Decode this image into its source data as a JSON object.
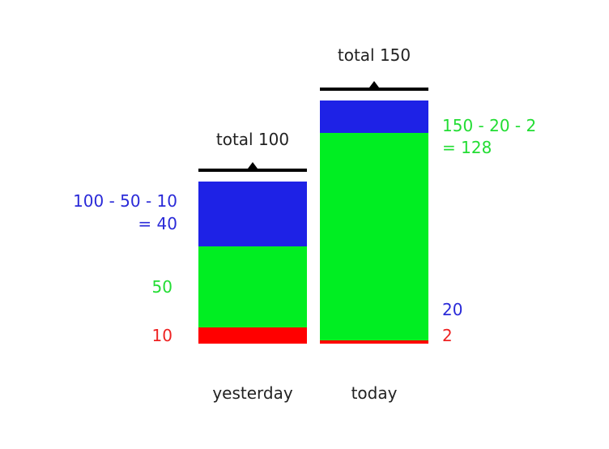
{
  "chart_data": {
    "type": "bar",
    "stacked": true,
    "categories": [
      "yesterday",
      "today"
    ],
    "series": [
      {
        "key": "red",
        "values": [
          10,
          2
        ],
        "color": "#ff0000"
      },
      {
        "key": "green",
        "values": [
          50,
          128
        ],
        "color": "#00ee22"
      },
      {
        "key": "blue",
        "values": [
          40,
          20
        ],
        "color": "#1e22e6"
      }
    ],
    "totals": [
      "total 100",
      "total 150"
    ],
    "total_values": [
      100,
      150
    ],
    "side_labels": {
      "yesterday": {
        "red": "10",
        "green": "50",
        "blue_line1": "100 - 50 - 10",
        "blue_line2": "= 40"
      },
      "today": {
        "red": "2",
        "blue": "20",
        "green_line1": "150 - 20 - 2",
        "green_line2": "= 128"
      }
    },
    "colors": {
      "red": "#ff0000",
      "green": "#00ee22",
      "blue": "#1e22e6",
      "text": "#222222",
      "green_text": "#22dd33",
      "blue_text": "#2a2ad8",
      "red_text": "#ee2222"
    },
    "title": "",
    "xlabel": "",
    "ylabel": "",
    "grid": false,
    "legend": "none"
  }
}
